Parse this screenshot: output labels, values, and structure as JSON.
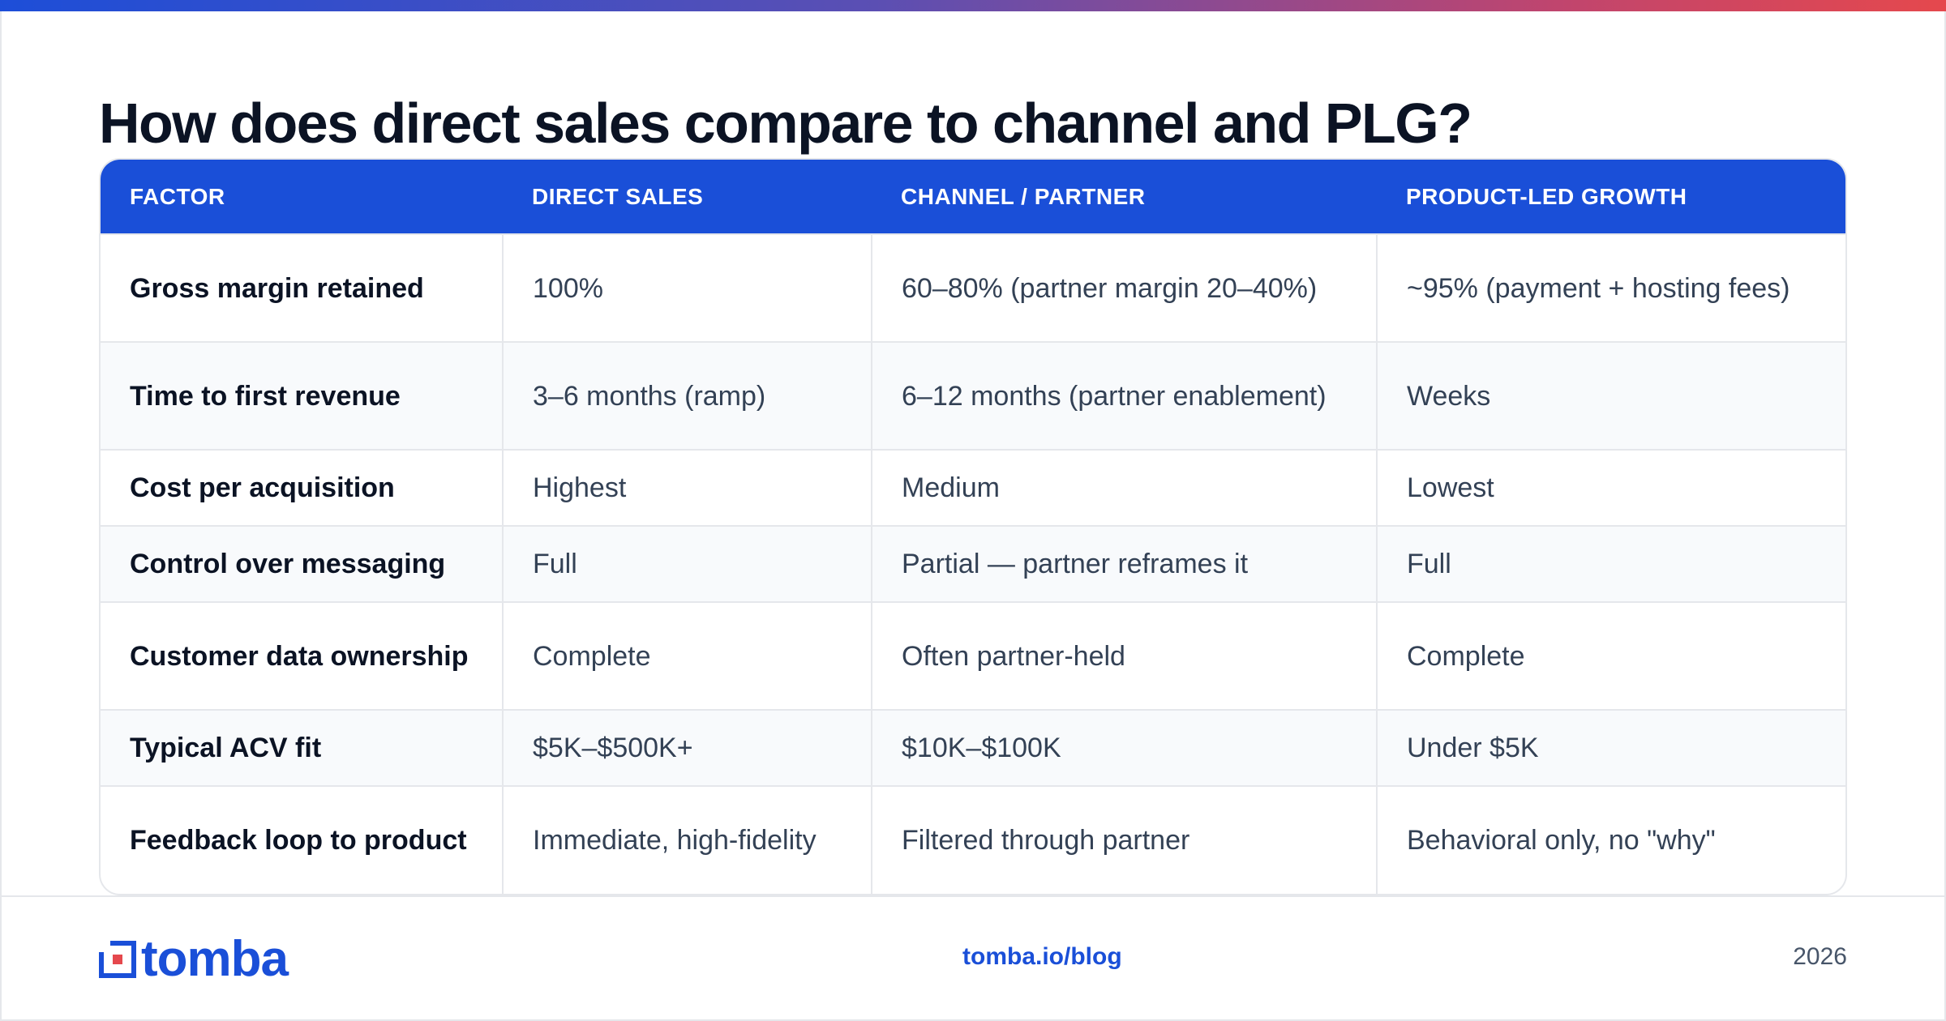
{
  "title": "How does direct sales compare to channel and PLG?",
  "table": {
    "headers": [
      "FACTOR",
      "DIRECT SALES",
      "CHANNEL / PARTNER",
      "PRODUCT-LED GROWTH"
    ],
    "rows": [
      [
        "Gross margin retained",
        "100%",
        "60–80% (partner margin 20–40%)",
        "~95% (payment + hosting fees)"
      ],
      [
        "Time to first revenue",
        "3–6 months (ramp)",
        "6–12 months (partner enablement)",
        "Weeks"
      ],
      [
        "Cost per acquisition",
        "Highest",
        "Medium",
        "Lowest"
      ],
      [
        "Control over messaging",
        "Full",
        "Partial — partner reframes it",
        "Full"
      ],
      [
        "Customer data ownership",
        "Complete",
        "Often partner-held",
        "Complete"
      ],
      [
        "Typical ACV fit",
        "$5K–$500K+",
        "$10K–$100K",
        "Under $5K"
      ],
      [
        "Feedback loop to product",
        "Immediate, high-fidelity",
        "Filtered through partner",
        "Behavioral only, no \"why\""
      ]
    ]
  },
  "footer": {
    "logo_text": "tomba",
    "link": "tomba.io/blog",
    "year": "2026"
  },
  "colors": {
    "accent": "#1a4fd8",
    "logo_red": "#e5484d"
  },
  "icons": {
    "logo": "tomba-logo-icon"
  }
}
